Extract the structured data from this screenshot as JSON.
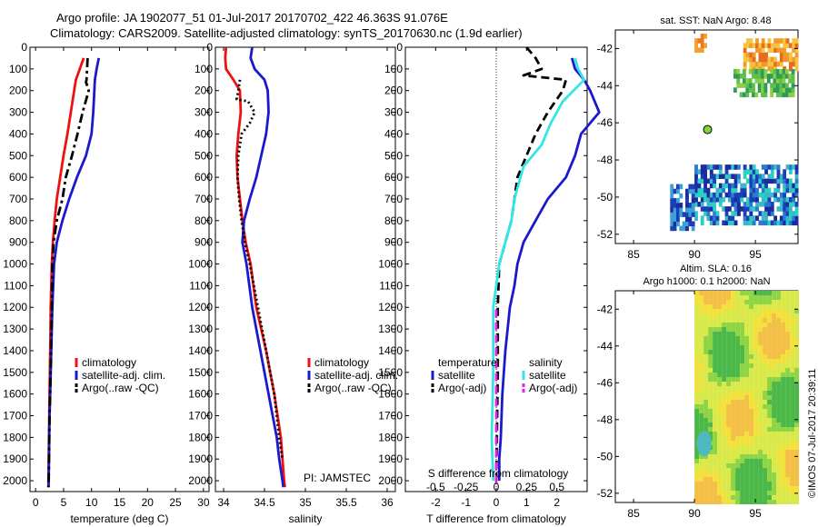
{
  "header": {
    "line1": "Argo profile: JA 1902077_51 01-Jul-2017 20170702_422 46.363S 91.076E",
    "line2": "Climatology: CARS2009. Satellite-adjusted climatology: synTS_20170630.nc (1.9d earlier)"
  },
  "colors": {
    "climatology": "#ee1111",
    "satellite": "#1a1acc",
    "argo": "#000000",
    "satellite_salinity": "#33e6e6",
    "argo_salinity_adj": "#e622e6"
  },
  "chart_data": [
    {
      "type": "line",
      "panel": "temperature",
      "xlabel": "temperature (deg C)",
      "xlim": [
        -1,
        31
      ],
      "xticks": [
        0,
        5,
        10,
        15,
        20,
        25,
        30
      ],
      "ylim": [
        2050,
        0
      ],
      "yticks": [
        0,
        100,
        200,
        300,
        400,
        500,
        600,
        700,
        800,
        900,
        1000,
        1100,
        1200,
        1300,
        1400,
        1500,
        1600,
        1700,
        1800,
        1900,
        2000
      ],
      "legend": [
        "climatology",
        "satellite-adj. clim.",
        "Argo(..raw -QC)"
      ],
      "series": [
        {
          "name": "climatology",
          "color": "#ee1111",
          "style": "solid",
          "x": [
            8.6,
            7.9,
            7.2,
            6.9,
            6.3,
            5.7,
            5.0,
            4.4,
            3.8,
            3.4,
            3.1,
            2.9,
            2.7,
            2.6,
            2.5,
            2.45,
            2.4,
            2.35,
            2.3,
            2.3
          ],
          "y": [
            50,
            100,
            150,
            200,
            300,
            400,
            500,
            600,
            700,
            800,
            900,
            1000,
            1200,
            1400,
            1600,
            1700,
            1800,
            1900,
            2000,
            2030
          ]
        },
        {
          "name": "satellite-adj. clim.",
          "color": "#1a1acc",
          "style": "solid",
          "x": [
            11.3,
            10.9,
            10.6,
            10.5,
            10.3,
            10.0,
            9.0,
            7.4,
            6.0,
            4.8,
            3.8,
            3.3,
            3.0,
            2.8,
            2.6,
            2.5,
            2.45,
            2.4,
            2.35,
            2.3
          ],
          "y": [
            50,
            100,
            150,
            200,
            300,
            400,
            500,
            600,
            700,
            800,
            900,
            1000,
            1200,
            1400,
            1600,
            1700,
            1800,
            1900,
            2000,
            2030
          ]
        },
        {
          "name": "Argo(..raw -QC)",
          "color": "#000000",
          "style": "dashdot",
          "x": [
            9.3,
            9.2,
            9.1,
            9.0,
            9.5,
            8.4,
            7.5,
            6.5,
            5.4,
            4.8,
            3.8,
            3.2,
            3.0,
            2.9,
            2.75,
            2.6,
            2.5,
            2.45,
            2.4,
            2.35,
            2.3
          ],
          "y": [
            50,
            100,
            150,
            160,
            200,
            300,
            400,
            500,
            600,
            700,
            800,
            900,
            1000,
            1200,
            1400,
            1600,
            1700,
            1800,
            1900,
            2000,
            2030
          ]
        }
      ]
    },
    {
      "type": "line",
      "panel": "salinity",
      "xlabel": "salinity",
      "xlim": [
        33.9,
        36.1
      ],
      "xticks": [
        34,
        34.5,
        35,
        35.5,
        36
      ],
      "xtick_labels": [
        "34",
        "34.5",
        "35",
        "35.5",
        "36"
      ],
      "ylim": [
        2050,
        0
      ],
      "annotation": "PI: JAMSTEC",
      "legend": [
        "climatology",
        "satellite-adj. clim.",
        "Argo(..raw -QC)"
      ],
      "series": [
        {
          "name": "climatology",
          "color": "#ee1111",
          "style": "solid",
          "x": [
            34.03,
            34.02,
            34.03,
            34.12,
            34.2,
            34.21,
            34.18,
            34.16,
            34.17,
            34.2,
            34.23,
            34.27,
            34.33,
            34.4,
            34.52,
            34.62,
            34.7,
            34.72,
            34.74,
            34.75
          ],
          "y": [
            0,
            50,
            100,
            150,
            200,
            300,
            400,
            500,
            600,
            700,
            800,
            900,
            1000,
            1200,
            1400,
            1600,
            1800,
            1900,
            2000,
            2030
          ]
        },
        {
          "name": "satellite-adj. clim.",
          "color": "#1a1acc",
          "style": "solid",
          "x": [
            34.35,
            34.33,
            34.38,
            34.5,
            34.54,
            34.55,
            34.52,
            34.46,
            34.4,
            34.32,
            34.25,
            34.23,
            34.28,
            34.35,
            34.45,
            34.55,
            34.65,
            34.68,
            34.72,
            34.73
          ],
          "y": [
            0,
            50,
            100,
            150,
            200,
            300,
            400,
            500,
            600,
            700,
            800,
            900,
            1000,
            1200,
            1400,
            1600,
            1800,
            1900,
            2000,
            2030
          ]
        },
        {
          "name": "Argo(..raw -QC)",
          "color": "#000000",
          "style": "dotted",
          "x": [
            34.2,
            34.18,
            34.16,
            34.3,
            34.38,
            34.32,
            34.22,
            34.18,
            34.17,
            34.19,
            34.22,
            34.26,
            34.32,
            34.42,
            34.52,
            34.62,
            34.68,
            34.72
          ],
          "y": [
            150,
            200,
            240,
            250,
            300,
            350,
            400,
            500,
            600,
            700,
            800,
            900,
            1000,
            1200,
            1400,
            1600,
            1800,
            1900
          ]
        }
      ]
    },
    {
      "type": "line",
      "panel": "difference",
      "xlabel": "T difference from climatology",
      "xlim": [
        -3,
        3
      ],
      "xticks": [
        -2,
        -1,
        0,
        1,
        2
      ],
      "xlabel_top": "S difference from climatology",
      "xticks_top": [
        -0.5,
        -0.25,
        0,
        0.25,
        0.5
      ],
      "xtick_labels_top": [
        "-0.5",
        "-0.25",
        "0",
        "0.25",
        "0.5"
      ],
      "ylim": [
        2050,
        0
      ],
      "legend_groups": {
        "temperature": [
          "satellite",
          "Argo(-adj)"
        ],
        "salinity": [
          "satellite",
          "Argo(-adj)"
        ]
      },
      "series": [
        {
          "name": "temperature satellite",
          "color": "#1a1acc",
          "style": "solid",
          "x": [
            2.5,
            2.6,
            2.9,
            3.1,
            3.4,
            2.8,
            2.6,
            2.3,
            1.7,
            1.3,
            0.9,
            0.7,
            0.6,
            0.45,
            0.3,
            0.2,
            0.15,
            0.1,
            0.1
          ],
          "y": [
            50,
            100,
            150,
            200,
            300,
            400,
            500,
            600,
            700,
            800,
            900,
            1000,
            1100,
            1200,
            1400,
            1600,
            1800,
            1900,
            2000
          ]
        },
        {
          "name": "temperature Argo(-adj)",
          "color": "#000000",
          "style": "dashed",
          "x": [
            1.0,
            1.3,
            1.5,
            0.9,
            2.3,
            2.2,
            1.7,
            1.3,
            1.0,
            0.7,
            0.6,
            0.5,
            0.3,
            0.1,
            0.05,
            0.05,
            0.0
          ],
          "y": [
            0,
            50,
            100,
            130,
            150,
            200,
            300,
            400,
            500,
            600,
            700,
            800,
            900,
            1000,
            1200,
            1500,
            2000
          ]
        },
        {
          "name": "salinity satellite",
          "color": "#33e6e6",
          "style": "solid",
          "x": [
            2.6,
            2.7,
            2.9,
            2.2,
            1.8,
            1.5,
            0.9,
            0.6,
            0.5,
            0.3,
            0.1,
            -0.1,
            -0.1,
            -0.15,
            -0.1
          ],
          "y": [
            50,
            100,
            150,
            250,
            350,
            450,
            550,
            700,
            800,
            900,
            1000,
            1200,
            1500,
            1800,
            2000
          ]
        },
        {
          "name": "salinity Argo(-adj)",
          "color": "#e622e6",
          "style": "dashed",
          "x": [
            0.0,
            0.0
          ],
          "y": [
            1210,
            2020
          ]
        }
      ]
    },
    {
      "type": "heatmap",
      "panel": "sst-map",
      "title": "sat. SST: NaN Argo: 8.48",
      "xlim": [
        83.5,
        98.5
      ],
      "xticks": [
        85,
        90,
        95
      ],
      "ylim": [
        -52.5,
        -41
      ],
      "yticks": [
        -42,
        -44,
        -46,
        -48,
        -50,
        -52
      ],
      "argo_position": {
        "lon": 91.076,
        "lat": -46.363
      }
    },
    {
      "type": "heatmap",
      "panel": "sla-map",
      "title": "Altim. SLA: 0.16",
      "subtitle": "Argo h1000: 0.1 h2000: NaN",
      "xlim": [
        83.5,
        98.5
      ],
      "xticks": [
        85,
        90,
        95
      ],
      "ylim": [
        -52.5,
        -41
      ],
      "yticks": [
        -42,
        -44,
        -46,
        -48,
        -50,
        -52
      ]
    }
  ],
  "footer": {
    "stamp": "©IMOS 07-Jul-2017 20:39:11"
  }
}
